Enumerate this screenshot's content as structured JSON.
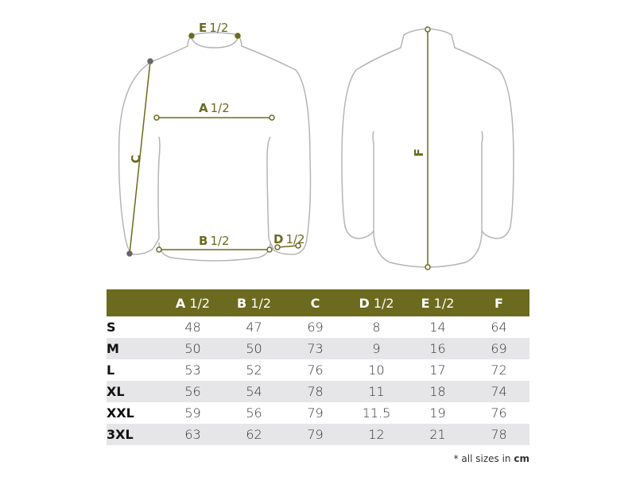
{
  "diagram": {
    "labels": {
      "e": {
        "letter": "E",
        "fraction": "1/2"
      },
      "a": {
        "letter": "A",
        "fraction": "1/2"
      },
      "b": {
        "letter": "B",
        "fraction": "1/2"
      },
      "c": {
        "letter": "C"
      },
      "d": {
        "letter": "D",
        "fraction": "1/2"
      },
      "f": {
        "letter": "F"
      }
    },
    "colors": {
      "accent": "#6b6a1e",
      "outline": "#b5b5b5",
      "row_alt": "#e6e6e8"
    }
  },
  "table": {
    "columns": [
      {
        "letter": "A",
        "fraction": "1/2"
      },
      {
        "letter": "B",
        "fraction": "1/2"
      },
      {
        "letter": "C",
        "fraction": ""
      },
      {
        "letter": "D",
        "fraction": "1/2"
      },
      {
        "letter": "E",
        "fraction": "1/2"
      },
      {
        "letter": "F",
        "fraction": ""
      }
    ],
    "rows": [
      {
        "size": "S",
        "values": [
          "48",
          "47",
          "69",
          "8",
          "14",
          "64"
        ]
      },
      {
        "size": "M",
        "values": [
          "50",
          "50",
          "73",
          "9",
          "16",
          "69"
        ]
      },
      {
        "size": "L",
        "values": [
          "53",
          "52",
          "76",
          "10",
          "17",
          "72"
        ]
      },
      {
        "size": "XL",
        "values": [
          "56",
          "54",
          "78",
          "11",
          "18",
          "74"
        ]
      },
      {
        "size": "XXL",
        "values": [
          "59",
          "56",
          "79",
          "11.5",
          "19",
          "76"
        ]
      },
      {
        "size": "3XL",
        "values": [
          "63",
          "62",
          "79",
          "12",
          "21",
          "78"
        ]
      }
    ]
  },
  "footnote": {
    "prefix": "* all sizes in",
    "unit": "cm"
  }
}
